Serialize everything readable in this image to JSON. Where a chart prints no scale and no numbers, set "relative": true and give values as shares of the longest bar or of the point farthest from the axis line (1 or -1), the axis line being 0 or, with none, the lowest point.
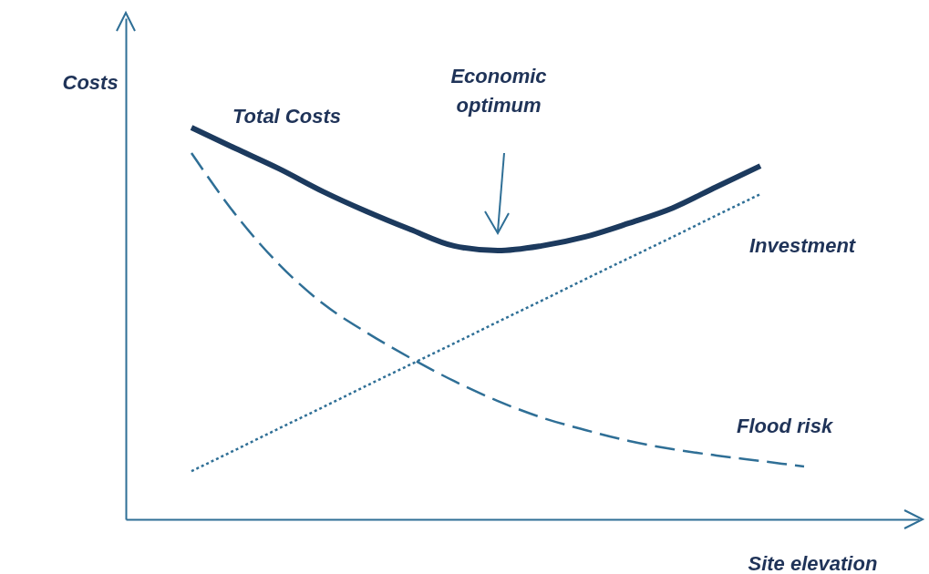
{
  "chart_data": {
    "type": "line",
    "relative": true,
    "xlabel": "Site elevation",
    "ylabel": "Costs",
    "categories": [
      null,
      null,
      null,
      null,
      null,
      null,
      null,
      null,
      null,
      null,
      null,
      null,
      null,
      null,
      null
    ],
    "series": [
      {
        "name": "Total Costs",
        "color": "#1c3a5e",
        "line_style": "solid",
        "values": [
          1.0,
          0.947,
          0.895,
          0.837,
          0.786,
          0.74,
          0.698,
          0.686,
          0.698,
          0.721,
          0.756,
          0.795,
          0.849,
          0.902,
          null
        ]
      },
      {
        "name": "Investment",
        "color": "#2f6f96",
        "line_style": "dotted",
        "values": [
          0.123,
          0.177,
          0.232,
          0.286,
          0.341,
          0.395,
          0.449,
          0.504,
          0.558,
          0.613,
          0.667,
          0.721,
          0.776,
          0.83,
          null
        ]
      },
      {
        "name": "Flood risk",
        "color": "#2f6f96",
        "line_style": "dashed",
        "values": [
          0.935,
          0.779,
          0.651,
          0.551,
          0.477,
          0.412,
          0.353,
          0.302,
          0.26,
          0.228,
          0.2,
          0.179,
          0.163,
          0.149,
          0.135
        ]
      }
    ],
    "annotations": [
      "Economic optimum"
    ]
  }
}
